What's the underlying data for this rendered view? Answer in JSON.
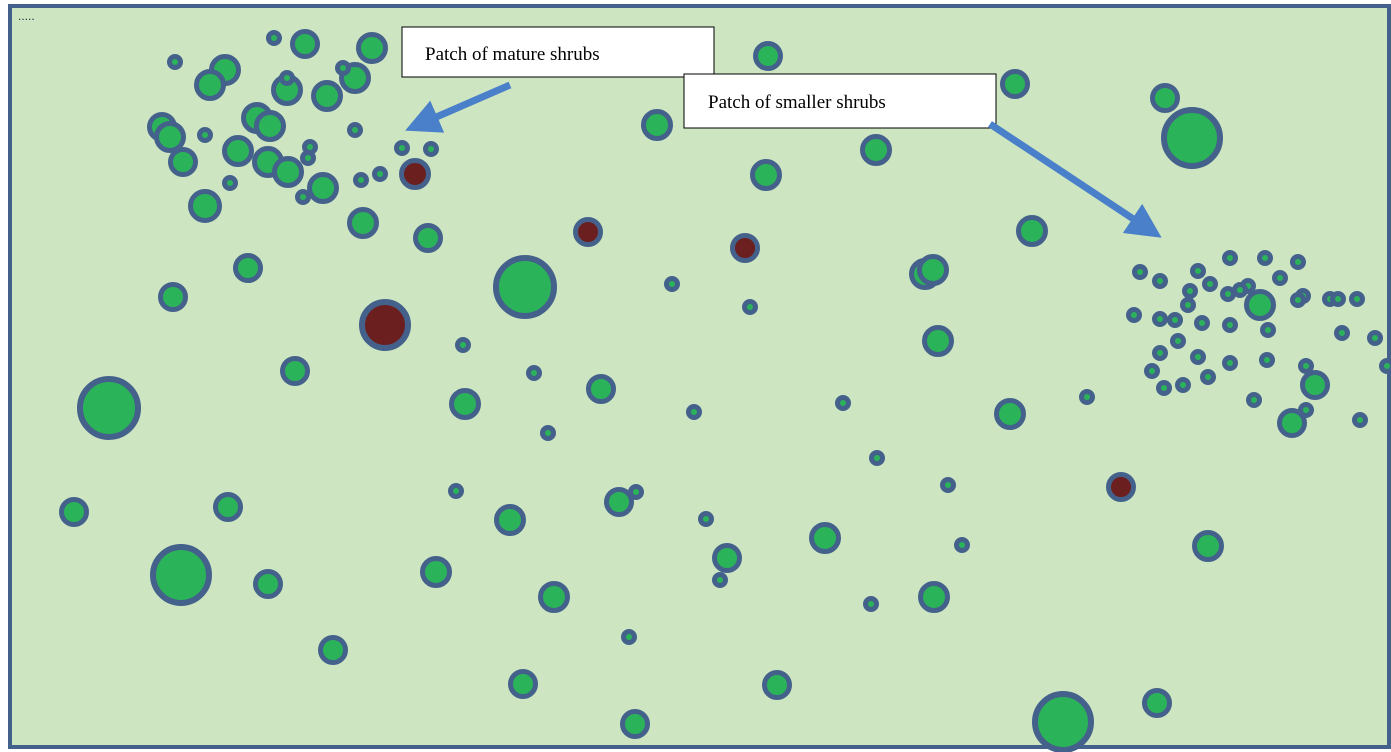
{
  "corner_mark": ".....",
  "labels": {
    "mature": "Patch of mature shrubs",
    "smaller": "Patch of smaller shrubs"
  },
  "colors": {
    "field": "#cde5c0",
    "frame": "#44618b",
    "shrub_fill": "#2bb35a",
    "shrub_ring": "#44618b",
    "dead_fill": "#6b1f1f",
    "arrow": "#4a7fc9",
    "label_box": "#ffffff",
    "label_border": "#000000"
  },
  "legend_note": {
    "shrub_kinds": [
      "live-shrub",
      "dead-shrub"
    ]
  }
}
